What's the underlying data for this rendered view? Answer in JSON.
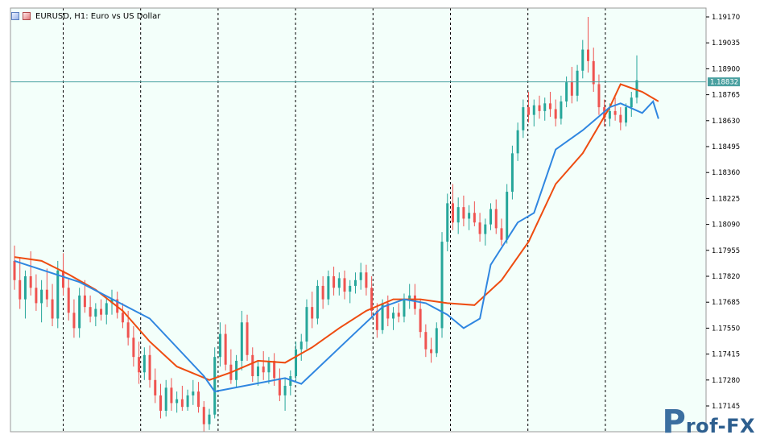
{
  "title": {
    "symbol_text": "EURUSD, H1:  Euro vs US Dollar",
    "icons": [
      "chart-window-icon",
      "chart-window-red-icon"
    ]
  },
  "watermark": {
    "letter": "P",
    "text": "rof-FX"
  },
  "current_price_label": "1.18832",
  "colors": {
    "background": "#f3fffa",
    "frame": "#9a9a9a",
    "bull": "#26a69a",
    "bear": "#ef5350",
    "ma_blue": "#2f86e0",
    "ma_red": "#ee4c10",
    "price_line": "#4aa0a0",
    "grid_vertical": "#000000"
  },
  "chart_data": {
    "type": "candlestick",
    "symbol": "EURUSD",
    "timeframe": "H1",
    "ylim": [
      1.1705,
      1.192
    ],
    "y_ticks": [
      "1.19170",
      "1.19035",
      "1.18900",
      "1.18765",
      "1.18630",
      "1.18495",
      "1.18360",
      "1.18225",
      "1.18090",
      "1.17955",
      "1.17820",
      "1.17685",
      "1.17550",
      "1.17415",
      "1.17280",
      "1.17145"
    ],
    "current_price": 1.18832,
    "vertical_grid_count": 8,
    "candles": [
      [
        1.179,
        1.1798,
        1.1775,
        1.178
      ],
      [
        1.178,
        1.1792,
        1.1765,
        1.177
      ],
      [
        1.177,
        1.1785,
        1.176,
        1.1782
      ],
      [
        1.1782,
        1.1795,
        1.1772,
        1.1776
      ],
      [
        1.1776,
        1.1783,
        1.1764,
        1.1768
      ],
      [
        1.1768,
        1.178,
        1.1758,
        1.1775
      ],
      [
        1.1775,
        1.1786,
        1.1766,
        1.177
      ],
      [
        1.177,
        1.1778,
        1.1756,
        1.176
      ],
      [
        1.176,
        1.179,
        1.1755,
        1.1785
      ],
      [
        1.1785,
        1.1794,
        1.1772,
        1.1776
      ],
      [
        1.1776,
        1.1781,
        1.1759,
        1.1763
      ],
      [
        1.1763,
        1.177,
        1.175,
        1.1755
      ],
      [
        1.1755,
        1.1776,
        1.175,
        1.1772
      ],
      [
        1.1772,
        1.178,
        1.1763,
        1.1766
      ],
      [
        1.1766,
        1.1772,
        1.1758,
        1.1761
      ],
      [
        1.1761,
        1.1768,
        1.1756,
        1.1765
      ],
      [
        1.1765,
        1.177,
        1.1759,
        1.1762
      ],
      [
        1.1762,
        1.1771,
        1.1757,
        1.1768
      ],
      [
        1.1768,
        1.1775,
        1.1762,
        1.177
      ],
      [
        1.177,
        1.1774,
        1.176,
        1.1763
      ],
      [
        1.1763,
        1.1768,
        1.1755,
        1.1758
      ],
      [
        1.1758,
        1.1764,
        1.1746,
        1.175
      ],
      [
        1.175,
        1.1756,
        1.1735,
        1.174
      ],
      [
        1.174,
        1.1748,
        1.1726,
        1.1732
      ],
      [
        1.1732,
        1.1745,
        1.1728,
        1.1741
      ],
      [
        1.1741,
        1.1746,
        1.1724,
        1.1728
      ],
      [
        1.1728,
        1.1734,
        1.1716,
        1.172
      ],
      [
        1.172,
        1.1726,
        1.1708,
        1.1712
      ],
      [
        1.1712,
        1.1728,
        1.1709,
        1.1724
      ],
      [
        1.1724,
        1.1729,
        1.1712,
        1.1716
      ],
      [
        1.1716,
        1.1722,
        1.1711,
        1.1718
      ],
      [
        1.1718,
        1.1725,
        1.1712,
        1.1714
      ],
      [
        1.1714,
        1.1723,
        1.1712,
        1.172
      ],
      [
        1.172,
        1.1728,
        1.1715,
        1.1722
      ],
      [
        1.1722,
        1.1727,
        1.1711,
        1.1714
      ],
      [
        1.1714,
        1.1717,
        1.1701,
        1.1705
      ],
      [
        1.1705,
        1.1713,
        1.1702,
        1.171
      ],
      [
        1.171,
        1.1745,
        1.1708,
        1.174
      ],
      [
        1.174,
        1.1758,
        1.1735,
        1.1752
      ],
      [
        1.1752,
        1.1757,
        1.1733,
        1.1736
      ],
      [
        1.1736,
        1.1744,
        1.1726,
        1.1728
      ],
      [
        1.1728,
        1.1741,
        1.1724,
        1.1738
      ],
      [
        1.1738,
        1.1764,
        1.1733,
        1.1758
      ],
      [
        1.1758,
        1.1762,
        1.1738,
        1.1741
      ],
      [
        1.1741,
        1.1745,
        1.1727,
        1.173
      ],
      [
        1.173,
        1.1738,
        1.1725,
        1.1735
      ],
      [
        1.1735,
        1.1743,
        1.1728,
        1.1732
      ],
      [
        1.1732,
        1.174,
        1.1726,
        1.1738
      ],
      [
        1.1738,
        1.1742,
        1.1725,
        1.1729
      ],
      [
        1.1729,
        1.1734,
        1.1717,
        1.172
      ],
      [
        1.172,
        1.1729,
        1.1712,
        1.1725
      ],
      [
        1.1725,
        1.1733,
        1.172,
        1.173
      ],
      [
        1.173,
        1.1748,
        1.1727,
        1.1744
      ],
      [
        1.1744,
        1.1752,
        1.1738,
        1.1748
      ],
      [
        1.1748,
        1.177,
        1.1744,
        1.1766
      ],
      [
        1.1766,
        1.1774,
        1.1755,
        1.176
      ],
      [
        1.176,
        1.178,
        1.1757,
        1.1777
      ],
      [
        1.1777,
        1.1782,
        1.1765,
        1.177
      ],
      [
        1.177,
        1.1785,
        1.1767,
        1.1782
      ],
      [
        1.1782,
        1.1787,
        1.1772,
        1.1776
      ],
      [
        1.1776,
        1.1784,
        1.1772,
        1.1781
      ],
      [
        1.1781,
        1.1785,
        1.177,
        1.1774
      ],
      [
        1.1774,
        1.178,
        1.1768,
        1.1777
      ],
      [
        1.1777,
        1.1784,
        1.1773,
        1.178
      ],
      [
        1.178,
        1.1789,
        1.1775,
        1.1784
      ],
      [
        1.1784,
        1.1788,
        1.1772,
        1.1776
      ],
      [
        1.1776,
        1.1782,
        1.176,
        1.1764
      ],
      [
        1.1764,
        1.1768,
        1.175,
        1.1754
      ],
      [
        1.1754,
        1.177,
        1.1752,
        1.1768
      ],
      [
        1.1768,
        1.1772,
        1.1756,
        1.176
      ],
      [
        1.176,
        1.1766,
        1.1754,
        1.1763
      ],
      [
        1.1763,
        1.1768,
        1.1758,
        1.1761
      ],
      [
        1.1761,
        1.1773,
        1.1758,
        1.177
      ],
      [
        1.177,
        1.1778,
        1.1765,
        1.1772
      ],
      [
        1.1772,
        1.1778,
        1.1762,
        1.1765
      ],
      [
        1.1765,
        1.177,
        1.175,
        1.1753
      ],
      [
        1.1753,
        1.1757,
        1.174,
        1.1744
      ],
      [
        1.1744,
        1.175,
        1.1737,
        1.1742
      ],
      [
        1.1742,
        1.1758,
        1.174,
        1.1755
      ],
      [
        1.1755,
        1.1805,
        1.175,
        1.18
      ],
      [
        1.18,
        1.1825,
        1.1795,
        1.182
      ],
      [
        1.182,
        1.183,
        1.1806,
        1.181
      ],
      [
        1.181,
        1.1823,
        1.1804,
        1.1818
      ],
      [
        1.1818,
        1.1824,
        1.1808,
        1.1812
      ],
      [
        1.1812,
        1.1819,
        1.1806,
        1.1815
      ],
      [
        1.1815,
        1.1821,
        1.1808,
        1.181
      ],
      [
        1.181,
        1.1815,
        1.18,
        1.1804
      ],
      [
        1.1804,
        1.1812,
        1.1798,
        1.1809
      ],
      [
        1.1809,
        1.182,
        1.1806,
        1.1817
      ],
      [
        1.1817,
        1.1822,
        1.1804,
        1.1807
      ],
      [
        1.1807,
        1.1812,
        1.1798,
        1.1801
      ],
      [
        1.1801,
        1.183,
        1.1799,
        1.1826
      ],
      [
        1.1826,
        1.185,
        1.1822,
        1.1846
      ],
      [
        1.1846,
        1.1862,
        1.1842,
        1.1858
      ],
      [
        1.1858,
        1.1874,
        1.1854,
        1.187
      ],
      [
        1.187,
        1.1878,
        1.1862,
        1.1866
      ],
      [
        1.1866,
        1.1874,
        1.186,
        1.1871
      ],
      [
        1.1871,
        1.1876,
        1.1864,
        1.1868
      ],
      [
        1.1868,
        1.1875,
        1.1863,
        1.1872
      ],
      [
        1.1872,
        1.1878,
        1.1865,
        1.1869
      ],
      [
        1.1869,
        1.1874,
        1.186,
        1.1864
      ],
      [
        1.1864,
        1.1876,
        1.1861,
        1.1873
      ],
      [
        1.1873,
        1.1886,
        1.187,
        1.1883
      ],
      [
        1.1883,
        1.1891,
        1.1872,
        1.1876
      ],
      [
        1.1876,
        1.1892,
        1.1873,
        1.1889
      ],
      [
        1.1889,
        1.1905,
        1.1885,
        1.19
      ],
      [
        1.19,
        1.1917,
        1.1888,
        1.1894
      ],
      [
        1.1894,
        1.1901,
        1.1878,
        1.1882
      ],
      [
        1.1882,
        1.1887,
        1.1866,
        1.187
      ],
      [
        1.187,
        1.1874,
        1.186,
        1.1864
      ],
      [
        1.1864,
        1.1872,
        1.186,
        1.1868
      ],
      [
        1.1868,
        1.1875,
        1.1863,
        1.1866
      ],
      [
        1.1866,
        1.187,
        1.1858,
        1.1862
      ],
      [
        1.1862,
        1.1872,
        1.186,
        1.187
      ],
      [
        1.187,
        1.1878,
        1.1865,
        1.1875
      ],
      [
        1.1875,
        1.1897,
        1.1872,
        1.1884
      ]
    ],
    "ma_blue": [
      [
        0,
        1.179
      ],
      [
        12,
        1.1779
      ],
      [
        25,
        1.176
      ],
      [
        35,
        1.173
      ],
      [
        37,
        1.1722
      ],
      [
        50,
        1.1729
      ],
      [
        53,
        1.1726
      ],
      [
        62,
        1.175
      ],
      [
        68,
        1.1766
      ],
      [
        72,
        1.177
      ],
      [
        76,
        1.1768
      ],
      [
        80,
        1.1762
      ],
      [
        83,
        1.1755
      ],
      [
        86,
        1.176
      ],
      [
        88,
        1.1788
      ],
      [
        93,
        1.181
      ],
      [
        96,
        1.1815
      ],
      [
        100,
        1.1848
      ],
      [
        105,
        1.1858
      ],
      [
        110,
        1.187
      ],
      [
        112,
        1.1872
      ],
      [
        116,
        1.1867
      ],
      [
        118,
        1.1873
      ],
      [
        119,
        1.1864
      ]
    ],
    "ma_red": [
      [
        0,
        1.1792
      ],
      [
        5,
        1.179
      ],
      [
        10,
        1.1783
      ],
      [
        15,
        1.1775
      ],
      [
        20,
        1.1764
      ],
      [
        25,
        1.1748
      ],
      [
        30,
        1.1735
      ],
      [
        36,
        1.1728
      ],
      [
        40,
        1.1732
      ],
      [
        45,
        1.1738
      ],
      [
        50,
        1.1737
      ],
      [
        55,
        1.1745
      ],
      [
        60,
        1.1755
      ],
      [
        65,
        1.1764
      ],
      [
        70,
        1.177
      ],
      [
        75,
        1.177
      ],
      [
        80,
        1.1768
      ],
      [
        85,
        1.1767
      ],
      [
        90,
        1.178
      ],
      [
        95,
        1.18
      ],
      [
        100,
        1.183
      ],
      [
        105,
        1.1846
      ],
      [
        110,
        1.187
      ],
      [
        112,
        1.1882
      ],
      [
        116,
        1.1878
      ],
      [
        119,
        1.1873
      ]
    ]
  }
}
